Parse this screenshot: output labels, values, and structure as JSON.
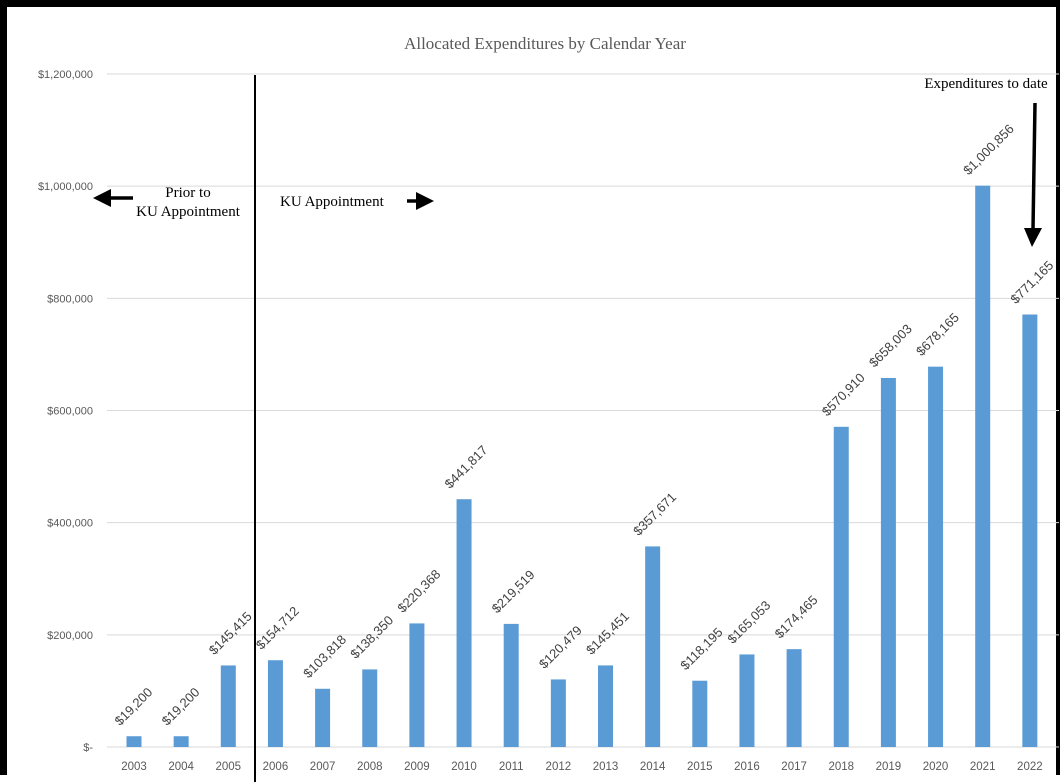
{
  "chart_data": {
    "type": "bar",
    "title": "Allocated Expenditures by Calendar Year",
    "xlabel": "",
    "ylabel": "",
    "ylim": [
      0,
      1200000
    ],
    "y_ticks": [
      0,
      200000,
      400000,
      600000,
      800000,
      1000000,
      1200000
    ],
    "y_tick_labels": [
      "$-",
      "$200,000",
      "$400,000",
      "$600,000",
      "$800,000",
      "$1,000,000",
      "$1,200,000"
    ],
    "grid": true,
    "legend": "none",
    "bar_color": "#5b9bd5",
    "categories": [
      "2003",
      "2004",
      "2005",
      "2006",
      "2007",
      "2008",
      "2009",
      "2010",
      "2011",
      "2012",
      "2013",
      "2014",
      "2015",
      "2016",
      "2017",
      "2018",
      "2019",
      "2020",
      "2021",
      "2022"
    ],
    "values": [
      19200,
      19200,
      145415,
      154712,
      103818,
      138350,
      220368,
      441817,
      219519,
      120479,
      145451,
      357671,
      118195,
      165053,
      174465,
      570910,
      658003,
      678165,
      1000856,
      771165
    ],
    "data_labels": [
      "$19,200",
      "$19,200",
      "$145,415",
      "$154,712",
      "$103,818",
      "$138,350",
      "$220,368",
      "$441,817",
      "$219,519",
      "$120,479",
      "$145,451",
      "$357,671",
      "$118,195",
      "$165,053",
      "$174,465",
      "$570,910",
      "$658,003",
      "$678,165",
      "$1,000,856",
      "$771,165"
    ],
    "annotations": {
      "prior_line1": "Prior to",
      "prior_line2": "KU Appointment",
      "ku": "KU Appointment",
      "to_date": "Expenditures to date"
    }
  }
}
